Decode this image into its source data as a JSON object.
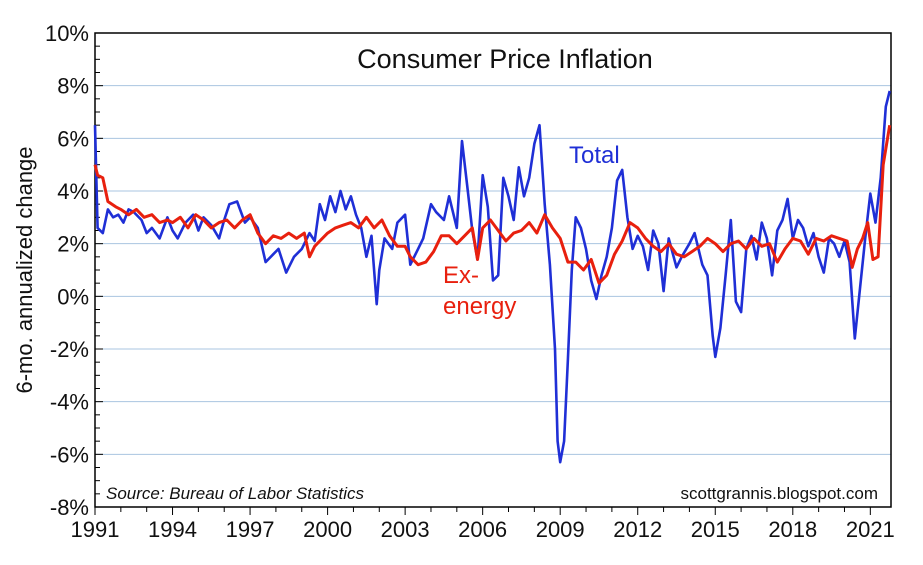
{
  "chart_data": {
    "type": "line",
    "title": "Consumer Price Inflation",
    "ylabel": "6-mo. annualized change",
    "xlabel": "",
    "source": "Source: Bureau of Labor Statistics",
    "credit": "scottgrannis.blogspot.com",
    "xlim": [
      1991,
      2021.8
    ],
    "ylim": [
      -8,
      10
    ],
    "yticks": [
      {
        "v": 10,
        "label": "10%"
      },
      {
        "v": 8,
        "label": "8%"
      },
      {
        "v": 6,
        "label": "6%"
      },
      {
        "v": 4,
        "label": "4%"
      },
      {
        "v": 2,
        "label": "2%"
      },
      {
        "v": 0,
        "label": "0%"
      },
      {
        "v": -2,
        "label": "-2%"
      },
      {
        "v": -4,
        "label": "-4%"
      },
      {
        "v": -6,
        "label": "-6%"
      },
      {
        "v": -8,
        "label": "-8%"
      }
    ],
    "xticks": [
      {
        "v": 1991,
        "label": "1991"
      },
      {
        "v": 1994,
        "label": "1994"
      },
      {
        "v": 1997,
        "label": "1997"
      },
      {
        "v": 2000,
        "label": "2000"
      },
      {
        "v": 2003,
        "label": "2003"
      },
      {
        "v": 2006,
        "label": "2006"
      },
      {
        "v": 2009,
        "label": "2009"
      },
      {
        "v": 2012,
        "label": "2012"
      },
      {
        "v": 2015,
        "label": "2015"
      },
      {
        "v": 2018,
        "label": "2018"
      },
      {
        "v": 2021,
        "label": "2021"
      }
    ],
    "grid": true,
    "series": [
      {
        "name": "Total",
        "label": "Total",
        "color": "#1f2fd6",
        "x": [
          1991.0,
          1991.1,
          1991.3,
          1991.5,
          1991.7,
          1991.9,
          1992.1,
          1992.3,
          1992.5,
          1992.8,
          1993.0,
          1993.2,
          1993.5,
          1993.8,
          1994.0,
          1994.2,
          1994.5,
          1994.8,
          1995.0,
          1995.2,
          1995.5,
          1995.8,
          1996.0,
          1996.2,
          1996.5,
          1996.8,
          1997.0,
          1997.3,
          1997.6,
          1997.9,
          1998.1,
          1998.4,
          1998.7,
          1999.0,
          1999.3,
          1999.5,
          1999.7,
          1999.9,
          2000.1,
          2000.3,
          2000.5,
          2000.7,
          2000.9,
          2001.1,
          2001.3,
          2001.5,
          2001.7,
          2001.9,
          2002.0,
          2002.2,
          2002.5,
          2002.7,
          2003.0,
          2003.2,
          2003.5,
          2003.7,
          2004.0,
          2004.2,
          2004.5,
          2004.7,
          2005.0,
          2005.2,
          2005.4,
          2005.6,
          2005.8,
          2006.0,
          2006.2,
          2006.4,
          2006.6,
          2006.8,
          2007.0,
          2007.2,
          2007.4,
          2007.6,
          2007.8,
          2008.0,
          2008.2,
          2008.4,
          2008.6,
          2008.8,
          2008.9,
          2009.0,
          2009.15,
          2009.3,
          2009.45,
          2009.6,
          2009.8,
          2010.0,
          2010.2,
          2010.4,
          2010.6,
          2010.8,
          2011.0,
          2011.2,
          2011.4,
          2011.6,
          2011.8,
          2012.0,
          2012.2,
          2012.4,
          2012.6,
          2012.8,
          2013.0,
          2013.2,
          2013.5,
          2013.7,
          2014.0,
          2014.2,
          2014.5,
          2014.7,
          2014.9,
          2015.0,
          2015.2,
          2015.4,
          2015.6,
          2015.8,
          2016.0,
          2016.2,
          2016.4,
          2016.6,
          2016.8,
          2017.0,
          2017.2,
          2017.4,
          2017.6,
          2017.8,
          2018.0,
          2018.2,
          2018.4,
          2018.6,
          2018.8,
          2019.0,
          2019.2,
          2019.4,
          2019.6,
          2019.8,
          2020.0,
          2020.2,
          2020.4,
          2020.6,
          2020.8,
          2021.0,
          2021.2,
          2021.4,
          2021.6,
          2021.75
        ],
        "y": [
          6.5,
          2.6,
          2.4,
          3.3,
          3.0,
          3.1,
          2.8,
          3.3,
          3.2,
          2.9,
          2.4,
          2.6,
          2.2,
          3.0,
          2.5,
          2.2,
          2.8,
          3.1,
          2.5,
          3.0,
          2.7,
          2.2,
          2.9,
          3.5,
          3.6,
          2.8,
          3.0,
          2.6,
          1.3,
          1.6,
          1.8,
          0.9,
          1.5,
          1.8,
          2.4,
          2.1,
          3.5,
          2.9,
          3.8,
          3.2,
          4.0,
          3.3,
          3.8,
          3.1,
          2.6,
          1.5,
          2.3,
          -0.3,
          1.0,
          2.2,
          1.8,
          2.8,
          3.1,
          1.2,
          1.8,
          2.2,
          3.5,
          3.2,
          2.9,
          3.8,
          2.6,
          5.9,
          4.2,
          2.5,
          1.4,
          4.6,
          3.4,
          0.6,
          0.8,
          4.5,
          3.8,
          2.9,
          4.9,
          3.8,
          4.5,
          5.8,
          6.5,
          3.5,
          1.2,
          -2.0,
          -5.5,
          -6.3,
          -5.5,
          -2.4,
          1.0,
          3.0,
          2.6,
          1.8,
          0.6,
          -0.1,
          0.8,
          1.5,
          2.6,
          4.4,
          4.8,
          3.0,
          1.8,
          2.3,
          1.9,
          1.0,
          2.5,
          2.0,
          0.2,
          2.2,
          1.1,
          1.5,
          2.0,
          2.4,
          1.2,
          0.8,
          -1.5,
          -2.3,
          -1.2,
          0.8,
          2.9,
          -0.2,
          -0.6,
          1.8,
          2.3,
          1.4,
          2.8,
          2.2,
          0.8,
          2.5,
          2.9,
          3.7,
          2.2,
          2.9,
          2.6,
          1.9,
          2.4,
          1.5,
          0.9,
          2.2,
          2.0,
          1.5,
          2.1,
          1.3,
          -1.6,
          0.3,
          2.2,
          3.9,
          2.8,
          4.5,
          7.2,
          7.8
        ]
      },
      {
        "name": "Ex-energy",
        "label_line1": "Ex-",
        "label_line2": "energy",
        "color": "#e8200e",
        "x": [
          1991.0,
          1991.1,
          1991.3,
          1991.5,
          1991.8,
          1992.0,
          1992.3,
          1992.6,
          1992.9,
          1993.2,
          1993.5,
          1993.8,
          1994.0,
          1994.3,
          1994.6,
          1994.9,
          1995.2,
          1995.5,
          1995.8,
          1996.1,
          1996.4,
          1996.7,
          1997.0,
          1997.3,
          1997.6,
          1997.9,
          1998.2,
          1998.5,
          1998.8,
          1999.1,
          1999.3,
          1999.5,
          1999.7,
          2000.0,
          2000.3,
          2000.6,
          2000.9,
          2001.2,
          2001.5,
          2001.8,
          2002.1,
          2002.4,
          2002.7,
          2003.0,
          2003.2,
          2003.5,
          2003.8,
          2004.1,
          2004.4,
          2004.7,
          2005.0,
          2005.3,
          2005.6,
          2005.8,
          2006.0,
          2006.3,
          2006.6,
          2006.9,
          2007.2,
          2007.5,
          2007.8,
          2008.1,
          2008.4,
          2008.7,
          2009.0,
          2009.3,
          2009.6,
          2009.9,
          2010.2,
          2010.5,
          2010.8,
          2011.1,
          2011.4,
          2011.7,
          2012.0,
          2012.3,
          2012.6,
          2012.9,
          2013.2,
          2013.5,
          2013.8,
          2014.1,
          2014.4,
          2014.7,
          2015.0,
          2015.3,
          2015.6,
          2015.9,
          2016.2,
          2016.5,
          2016.8,
          2017.1,
          2017.4,
          2017.7,
          2018.0,
          2018.3,
          2018.6,
          2018.9,
          2019.2,
          2019.5,
          2019.8,
          2020.1,
          2020.3,
          2020.5,
          2020.7,
          2020.9,
          2021.1,
          2021.3,
          2021.5,
          2021.75
        ],
        "y": [
          5.0,
          4.6,
          4.5,
          3.6,
          3.4,
          3.3,
          3.1,
          3.3,
          3.0,
          3.1,
          2.8,
          2.9,
          2.8,
          3.0,
          2.6,
          3.1,
          2.9,
          2.6,
          2.8,
          2.9,
          2.6,
          2.9,
          3.1,
          2.4,
          2.0,
          2.3,
          2.2,
          2.4,
          2.2,
          2.4,
          1.5,
          1.9,
          2.1,
          2.4,
          2.6,
          2.7,
          2.8,
          2.6,
          3.0,
          2.6,
          2.9,
          2.3,
          1.9,
          1.9,
          1.5,
          1.2,
          1.3,
          1.7,
          2.3,
          2.3,
          2.0,
          2.3,
          2.6,
          1.4,
          2.6,
          2.9,
          2.5,
          2.1,
          2.4,
          2.5,
          2.8,
          2.4,
          3.1,
          2.6,
          2.2,
          1.3,
          1.3,
          1.0,
          1.4,
          0.5,
          0.8,
          1.6,
          2.1,
          2.8,
          2.6,
          2.2,
          1.9,
          1.7,
          2.0,
          1.6,
          1.5,
          1.7,
          1.9,
          2.2,
          2.0,
          1.7,
          2.0,
          2.1,
          1.8,
          2.2,
          1.9,
          2.0,
          1.3,
          1.8,
          2.2,
          2.1,
          1.6,
          2.2,
          2.1,
          2.3,
          2.2,
          2.1,
          1.1,
          1.8,
          2.2,
          2.8,
          1.4,
          1.5,
          5.0,
          6.5
        ]
      }
    ]
  }
}
